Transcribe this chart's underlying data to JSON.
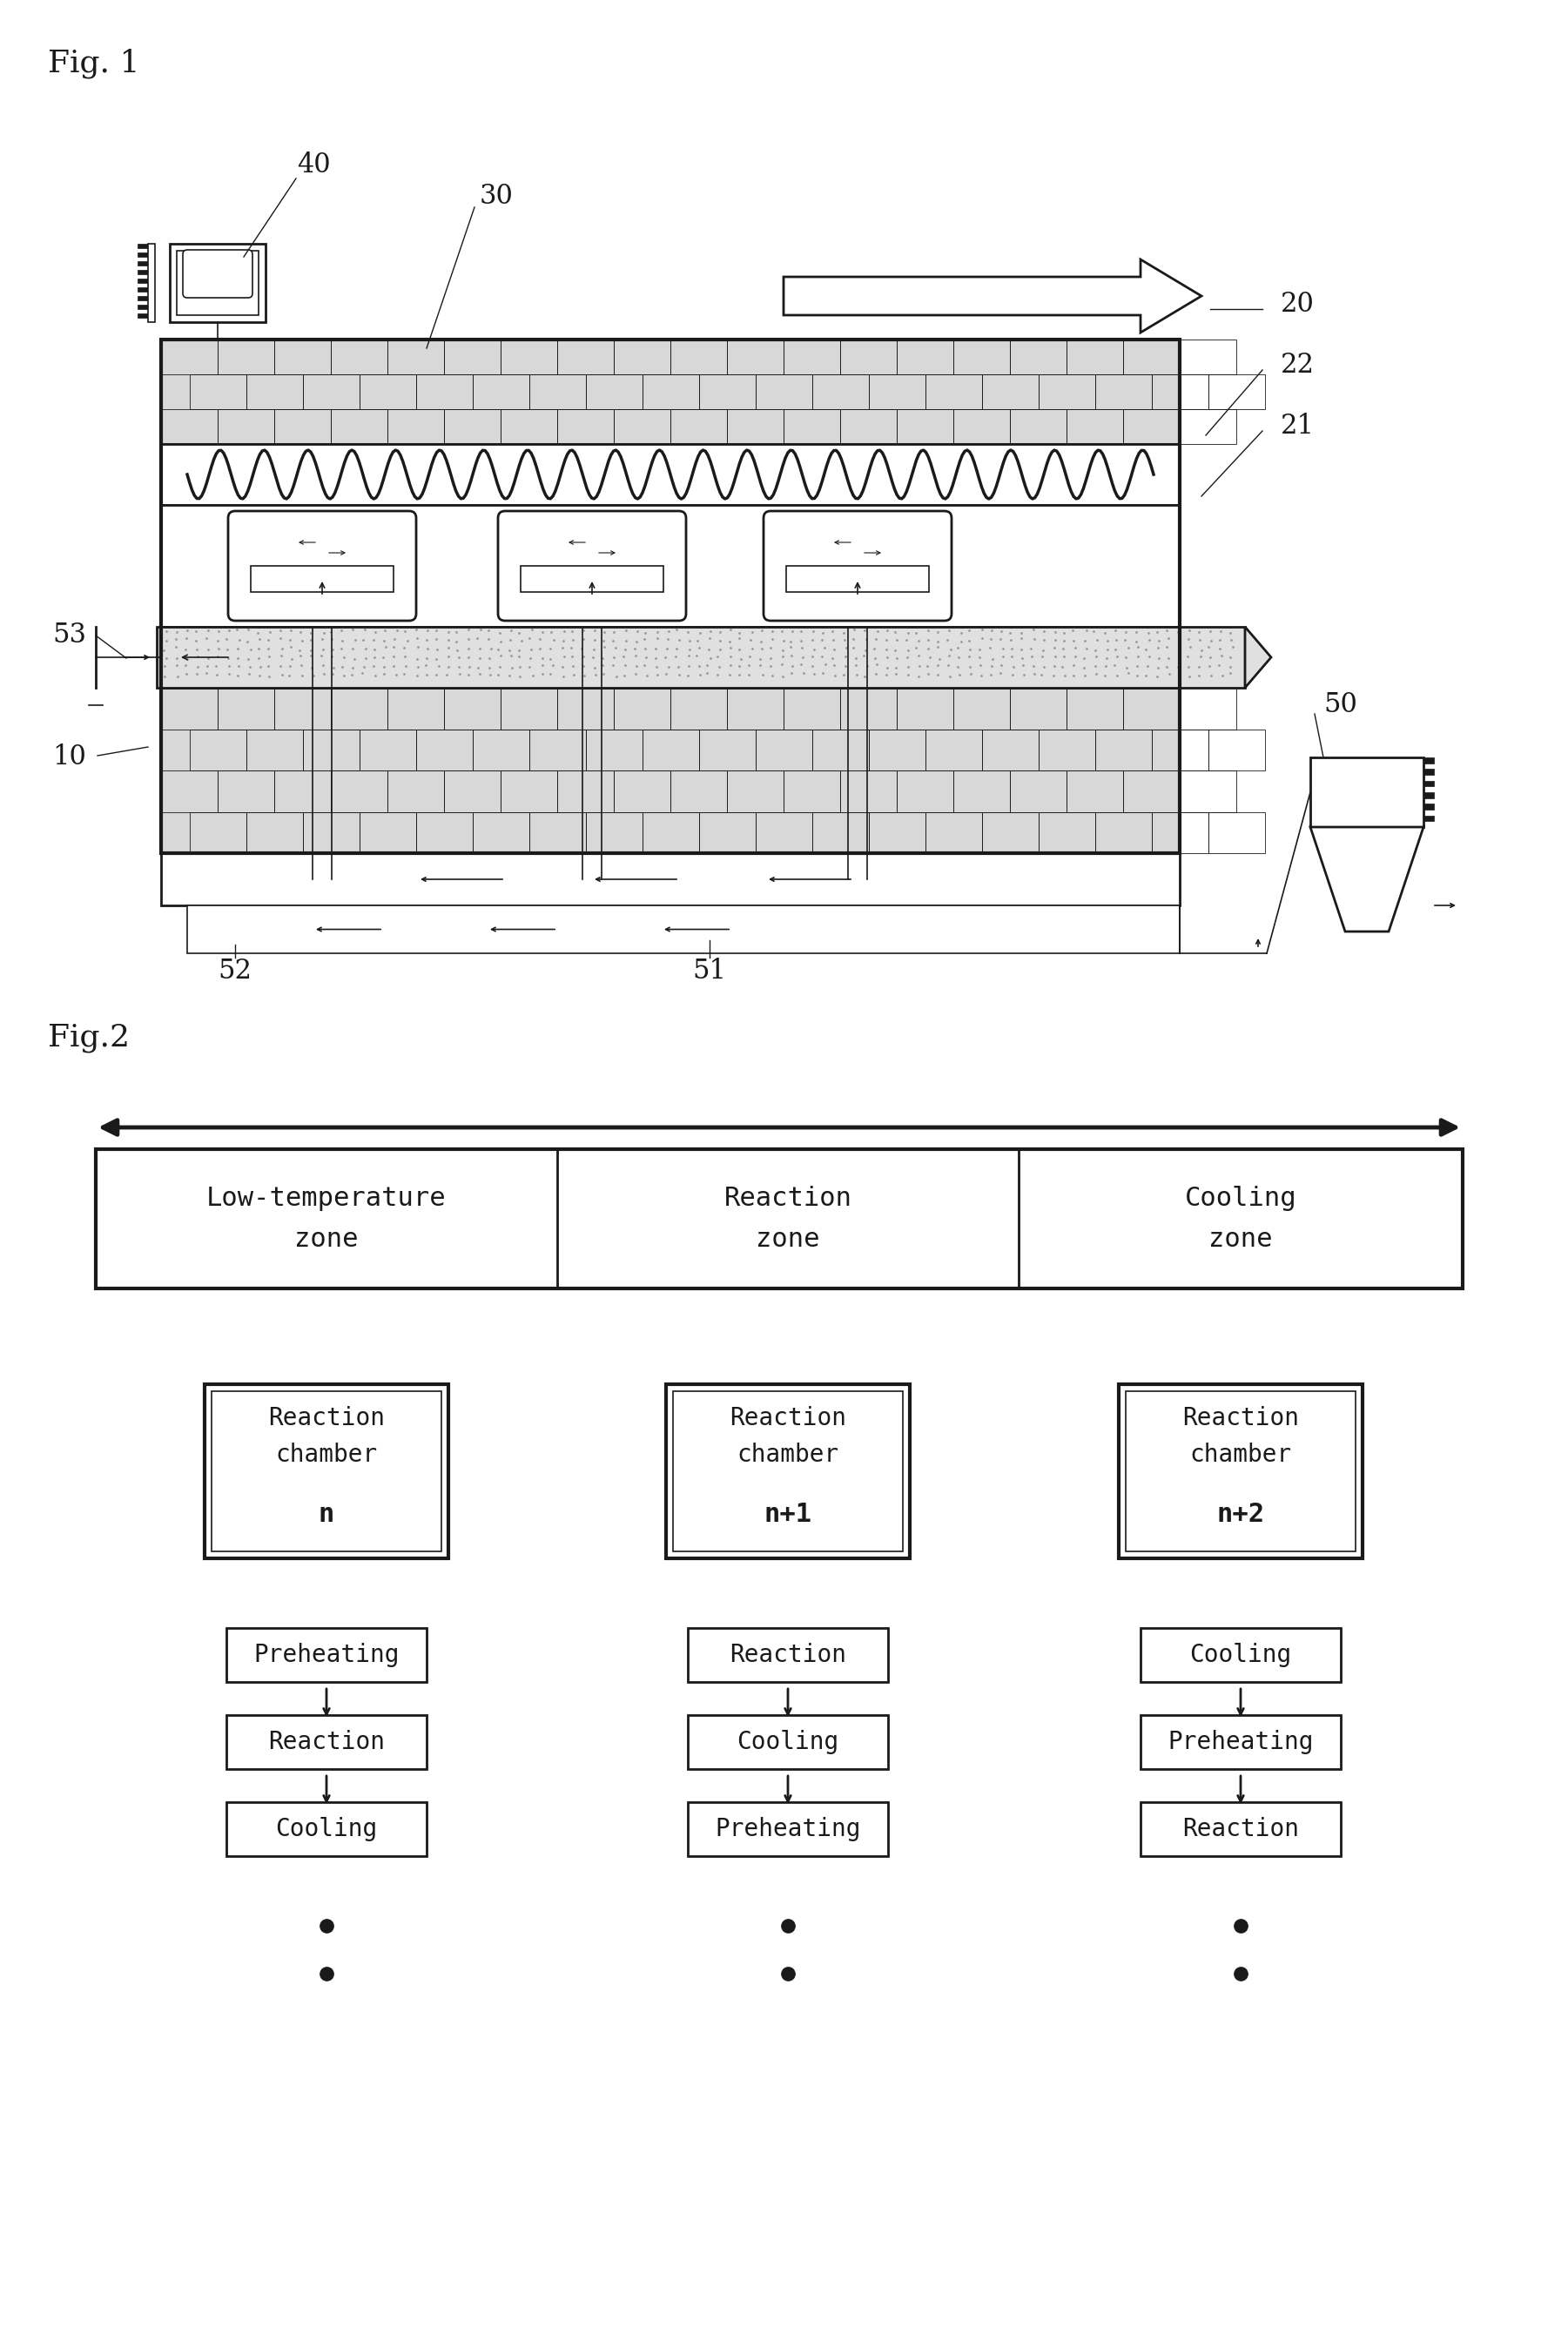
{
  "fig1_label": "Fig. 1",
  "fig2_label": "Fig.2",
  "bg_color": "#ffffff",
  "line_color": "#1a1a1a",
  "zone_labels": [
    "Low-temperature\nzone",
    "Reaction\nzone",
    "Cooling\nzone"
  ],
  "chamber_labels": [
    "Reaction\nchamber\nn",
    "Reaction\nchamber\nn+1",
    "Reaction\nchamber\nn+2"
  ],
  "col1_steps": [
    "Preheating",
    "Reaction",
    "Cooling"
  ],
  "col2_steps": [
    "Reaction",
    "Cooling",
    "Preheating"
  ],
  "col3_steps": [
    "Cooling",
    "Preheating",
    "Reaction"
  ]
}
